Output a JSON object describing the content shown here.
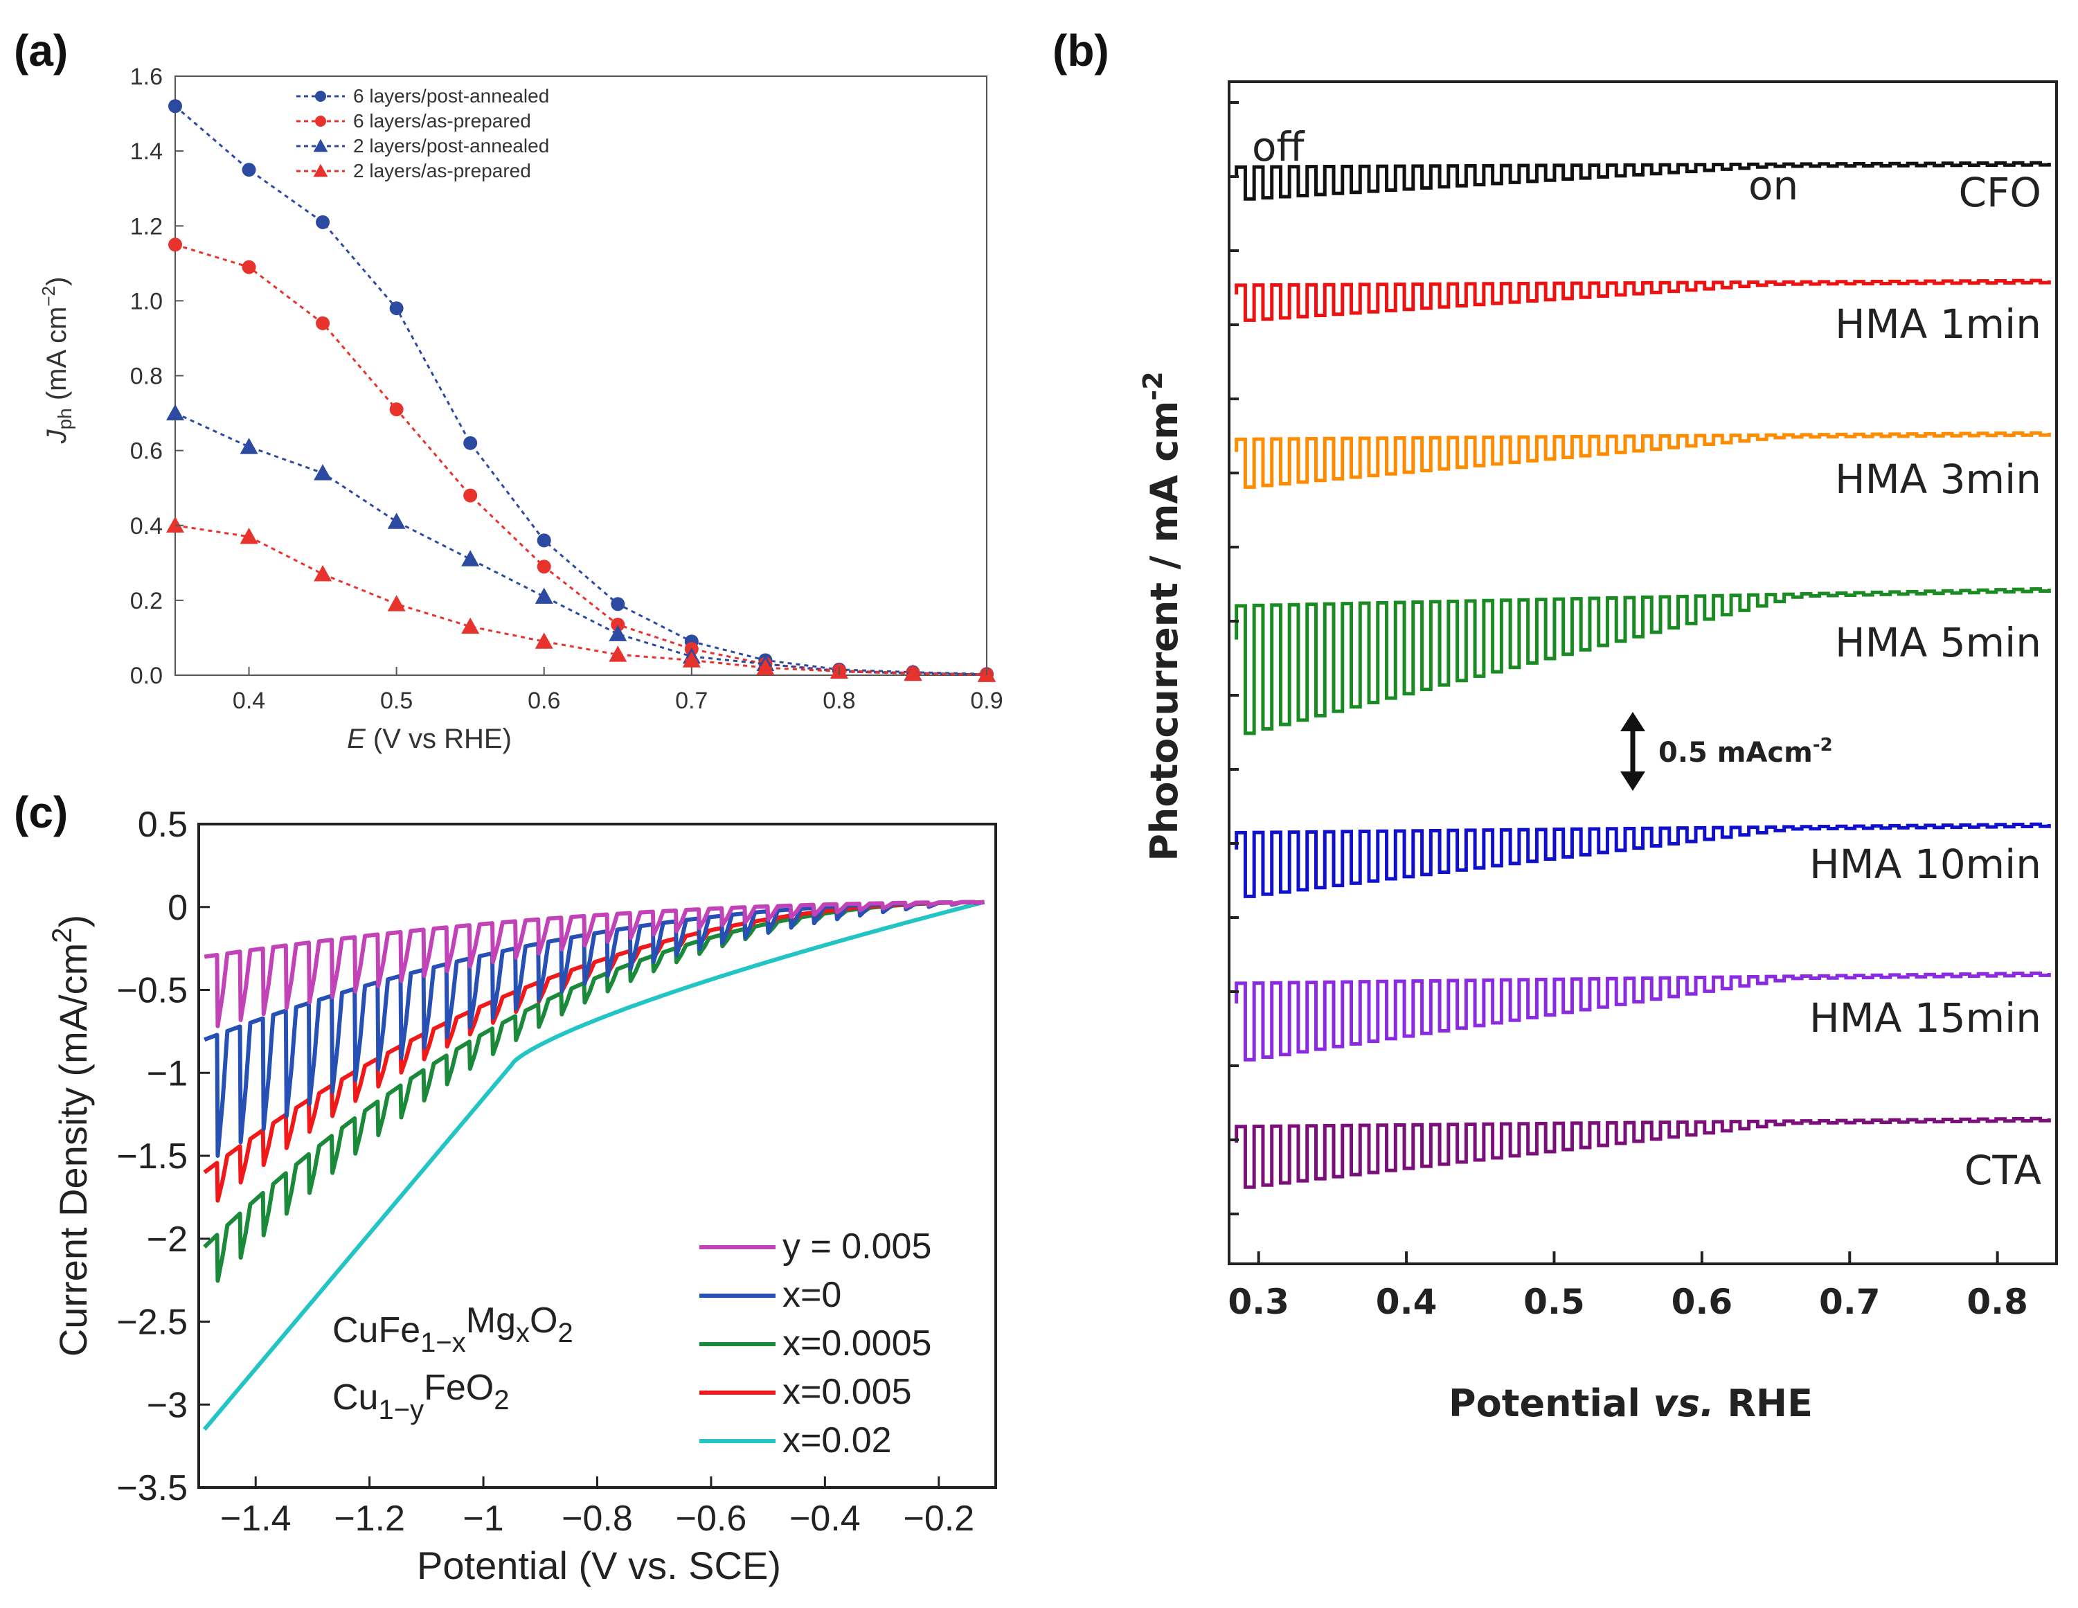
{
  "chart_data": [
    {
      "panel": "(a)",
      "type": "line",
      "xlabel": "E (V vs RHE)",
      "ylabel": "J_ph (mA cm^-2)",
      "ylabel_parts": {
        "sym": "J",
        "sub": "ph",
        "unit": " (mA cm",
        "exp": "−2",
        "close": ")"
      },
      "xlabel_parts": {
        "sym": "E",
        "rest": " (V vs RHE)"
      },
      "xlim": [
        0.35,
        0.9
      ],
      "ylim": [
        0.0,
        1.6
      ],
      "xticks": [
        "0.4",
        "0.5",
        "0.6",
        "0.7",
        "0.8",
        "0.9"
      ],
      "xtick_values": [
        0.4,
        0.5,
        0.6,
        0.7,
        0.8,
        0.9
      ],
      "yticks": [
        "0.0",
        "0.2",
        "0.4",
        "0.6",
        "0.8",
        "1.0",
        "1.2",
        "1.4",
        "1.6"
      ],
      "ytick_values": [
        0.0,
        0.2,
        0.4,
        0.6,
        0.8,
        1.0,
        1.2,
        1.4,
        1.6
      ],
      "x": [
        0.35,
        0.4,
        0.45,
        0.5,
        0.55,
        0.6,
        0.65,
        0.7,
        0.75,
        0.8,
        0.85,
        0.9
      ],
      "series": [
        {
          "name": "6 layers/post-annealed",
          "color": "#2b4aa0",
          "marker": "circle",
          "values": [
            1.52,
            1.35,
            1.21,
            0.98,
            0.62,
            0.36,
            0.19,
            0.09,
            0.04,
            0.015,
            0.008,
            0.003
          ]
        },
        {
          "name": "6 layers/as-prepared",
          "color": "#e8322c",
          "marker": "circle",
          "values": [
            1.15,
            1.09,
            0.94,
            0.71,
            0.48,
            0.29,
            0.135,
            0.07,
            0.03,
            0.012,
            0.006,
            0.002
          ]
        },
        {
          "name": "2 layers/post-annealed",
          "color": "#2b4aa0",
          "marker": "triangle",
          "values": [
            0.7,
            0.61,
            0.54,
            0.41,
            0.31,
            0.21,
            0.11,
            0.05,
            0.03,
            0.01,
            0.005,
            0.002
          ]
        },
        {
          "name": "2 layers/as-prepared",
          "color": "#e8322c",
          "marker": "triangle",
          "values": [
            0.4,
            0.37,
            0.27,
            0.19,
            0.13,
            0.09,
            0.055,
            0.04,
            0.02,
            0.01,
            0.004,
            0.001
          ]
        }
      ]
    },
    {
      "panel": "(b)",
      "type": "line",
      "subtype": "chopped-light photocurrent (stacked, offset)",
      "xlabel_parts": {
        "a": "Potential ",
        "b": "vs.",
        "c": " RHE"
      },
      "ylabel_parts": {
        "a": "Photocurrent / mA cm",
        "exp": "-2"
      },
      "xlim": [
        0.28,
        0.84
      ],
      "xticks": [
        "0.3",
        "0.4",
        "0.5",
        "0.6",
        "0.7",
        "0.8"
      ],
      "xtick_values": [
        0.3,
        0.4,
        0.5,
        0.6,
        0.7,
        0.8
      ],
      "annotations": {
        "off": "off",
        "on": "on",
        "scale_bar": "0.5 mAcm",
        "scale_exp": "-2"
      },
      "series": [
        {
          "name": "CFO",
          "color": "#111111",
          "dark_amplitude": 0.2
        },
        {
          "name": "HMA 1min",
          "color": "#ee1111",
          "dark_amplitude": 0.22
        },
        {
          "name": "HMA 3min",
          "color": "#ff8c00",
          "dark_amplitude": 0.3
        },
        {
          "name": "HMA 5min",
          "color": "#1a8a22",
          "dark_amplitude": 0.8
        },
        {
          "name": "HMA 10min",
          "color": "#1010cc",
          "dark_amplitude": 0.4
        },
        {
          "name": "HMA 15min",
          "color": "#8a2be2",
          "dark_amplitude": 0.48
        },
        {
          "name": "CTA",
          "color": "#7a0f7a",
          "dark_amplitude": 0.38
        }
      ]
    },
    {
      "panel": "(c)",
      "type": "line",
      "subtype": "chopped-light LSV",
      "xlabel": "Potential (V vs. SCE)",
      "ylabel": "Current Density (mA/cm",
      "ylabel_exp": "2",
      "ylabel_close": ")",
      "xlim": [
        -1.5,
        -0.1
      ],
      "ylim": [
        -3.5,
        0.5
      ],
      "xticks": [
        "−1.4",
        "−1.2",
        "−1",
        "−0.8",
        "−0.6",
        "−0.4",
        "−0.2"
      ],
      "xtick_values": [
        -1.4,
        -1.2,
        -1.0,
        -0.8,
        -0.6,
        -0.4,
        -0.2
      ],
      "yticks": [
        "0.5",
        "0",
        "−0.5",
        "−1",
        "−1.5",
        "−2",
        "−2.5",
        "−3",
        "−3.5"
      ],
      "ytick_values": [
        0.5,
        0.0,
        -0.5,
        -1.0,
        -1.5,
        -2.0,
        -2.5,
        -3.0,
        -3.5
      ],
      "formula1": {
        "a": "CuFe",
        "s1": "1−x",
        "b": "Mg",
        "s2": "x",
        "c": "O",
        "s3": "2"
      },
      "formula2": {
        "a": "Cu",
        "s1": "1−y",
        "b": "FeO",
        "s2": "2"
      },
      "series": [
        {
          "name": "y = 0.005",
          "color": "#c242b8",
          "start_light": -0.65,
          "start_dark": -0.3,
          "pulse": true
        },
        {
          "name": "x=0",
          "color": "#2750b5",
          "start_light": -1.45,
          "start_dark": -0.8,
          "pulse": true
        },
        {
          "name": "x=0.0005",
          "color": "#1a8a3a",
          "start_light": -2.25,
          "start_dark": -2.05,
          "pulse": true
        },
        {
          "name": "x=0.005",
          "color": "#f01818",
          "start_light": -1.75,
          "start_dark": -1.6,
          "pulse": true
        },
        {
          "name": "x=0.02",
          "color": "#22c4c4",
          "start_light": -3.15,
          "start_dark": -3.15,
          "pulse": false
        }
      ]
    }
  ]
}
